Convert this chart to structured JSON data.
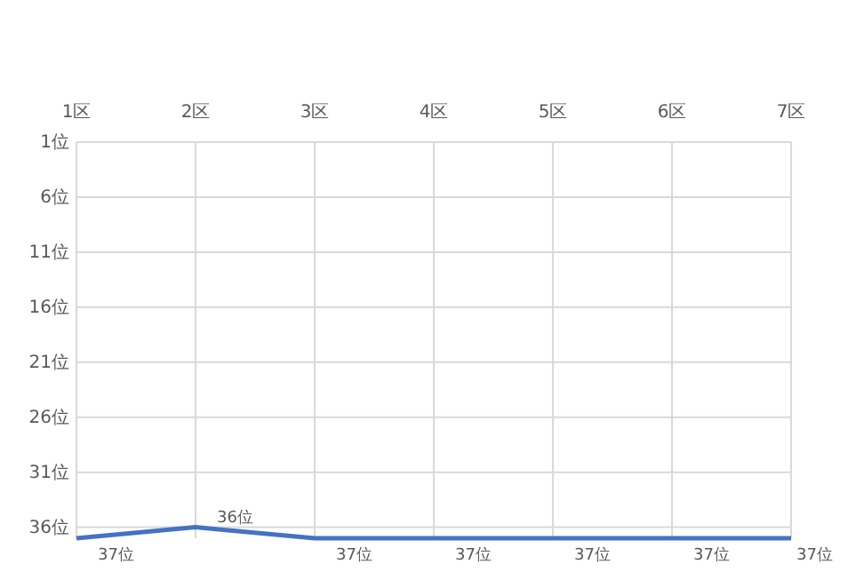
{
  "chart_data": {
    "type": "line",
    "categories": [
      "1区",
      "2区",
      "3区",
      "4区",
      "5区",
      "6区",
      "7区"
    ],
    "series": [
      {
        "color": "#4472c4",
        "values": [
          37,
          36,
          37,
          37,
          37,
          37,
          37
        ],
        "value_labels": [
          "37位",
          "36位",
          "37位",
          "37位",
          "37位",
          "37位",
          "37位"
        ]
      }
    ],
    "ylim": [
      37,
      1
    ],
    "yticks": [
      {
        "value": 1,
        "label": "1位"
      },
      {
        "value": 6,
        "label": "6位"
      },
      {
        "value": 11,
        "label": "11位"
      },
      {
        "value": 16,
        "label": "16位"
      },
      {
        "value": 21,
        "label": "21位"
      },
      {
        "value": 26,
        "label": "26位"
      },
      {
        "value": 31,
        "label": "31位"
      },
      {
        "value": 36,
        "label": "36位"
      }
    ],
    "grid": true,
    "marker": "none",
    "line_style": "solid"
  }
}
